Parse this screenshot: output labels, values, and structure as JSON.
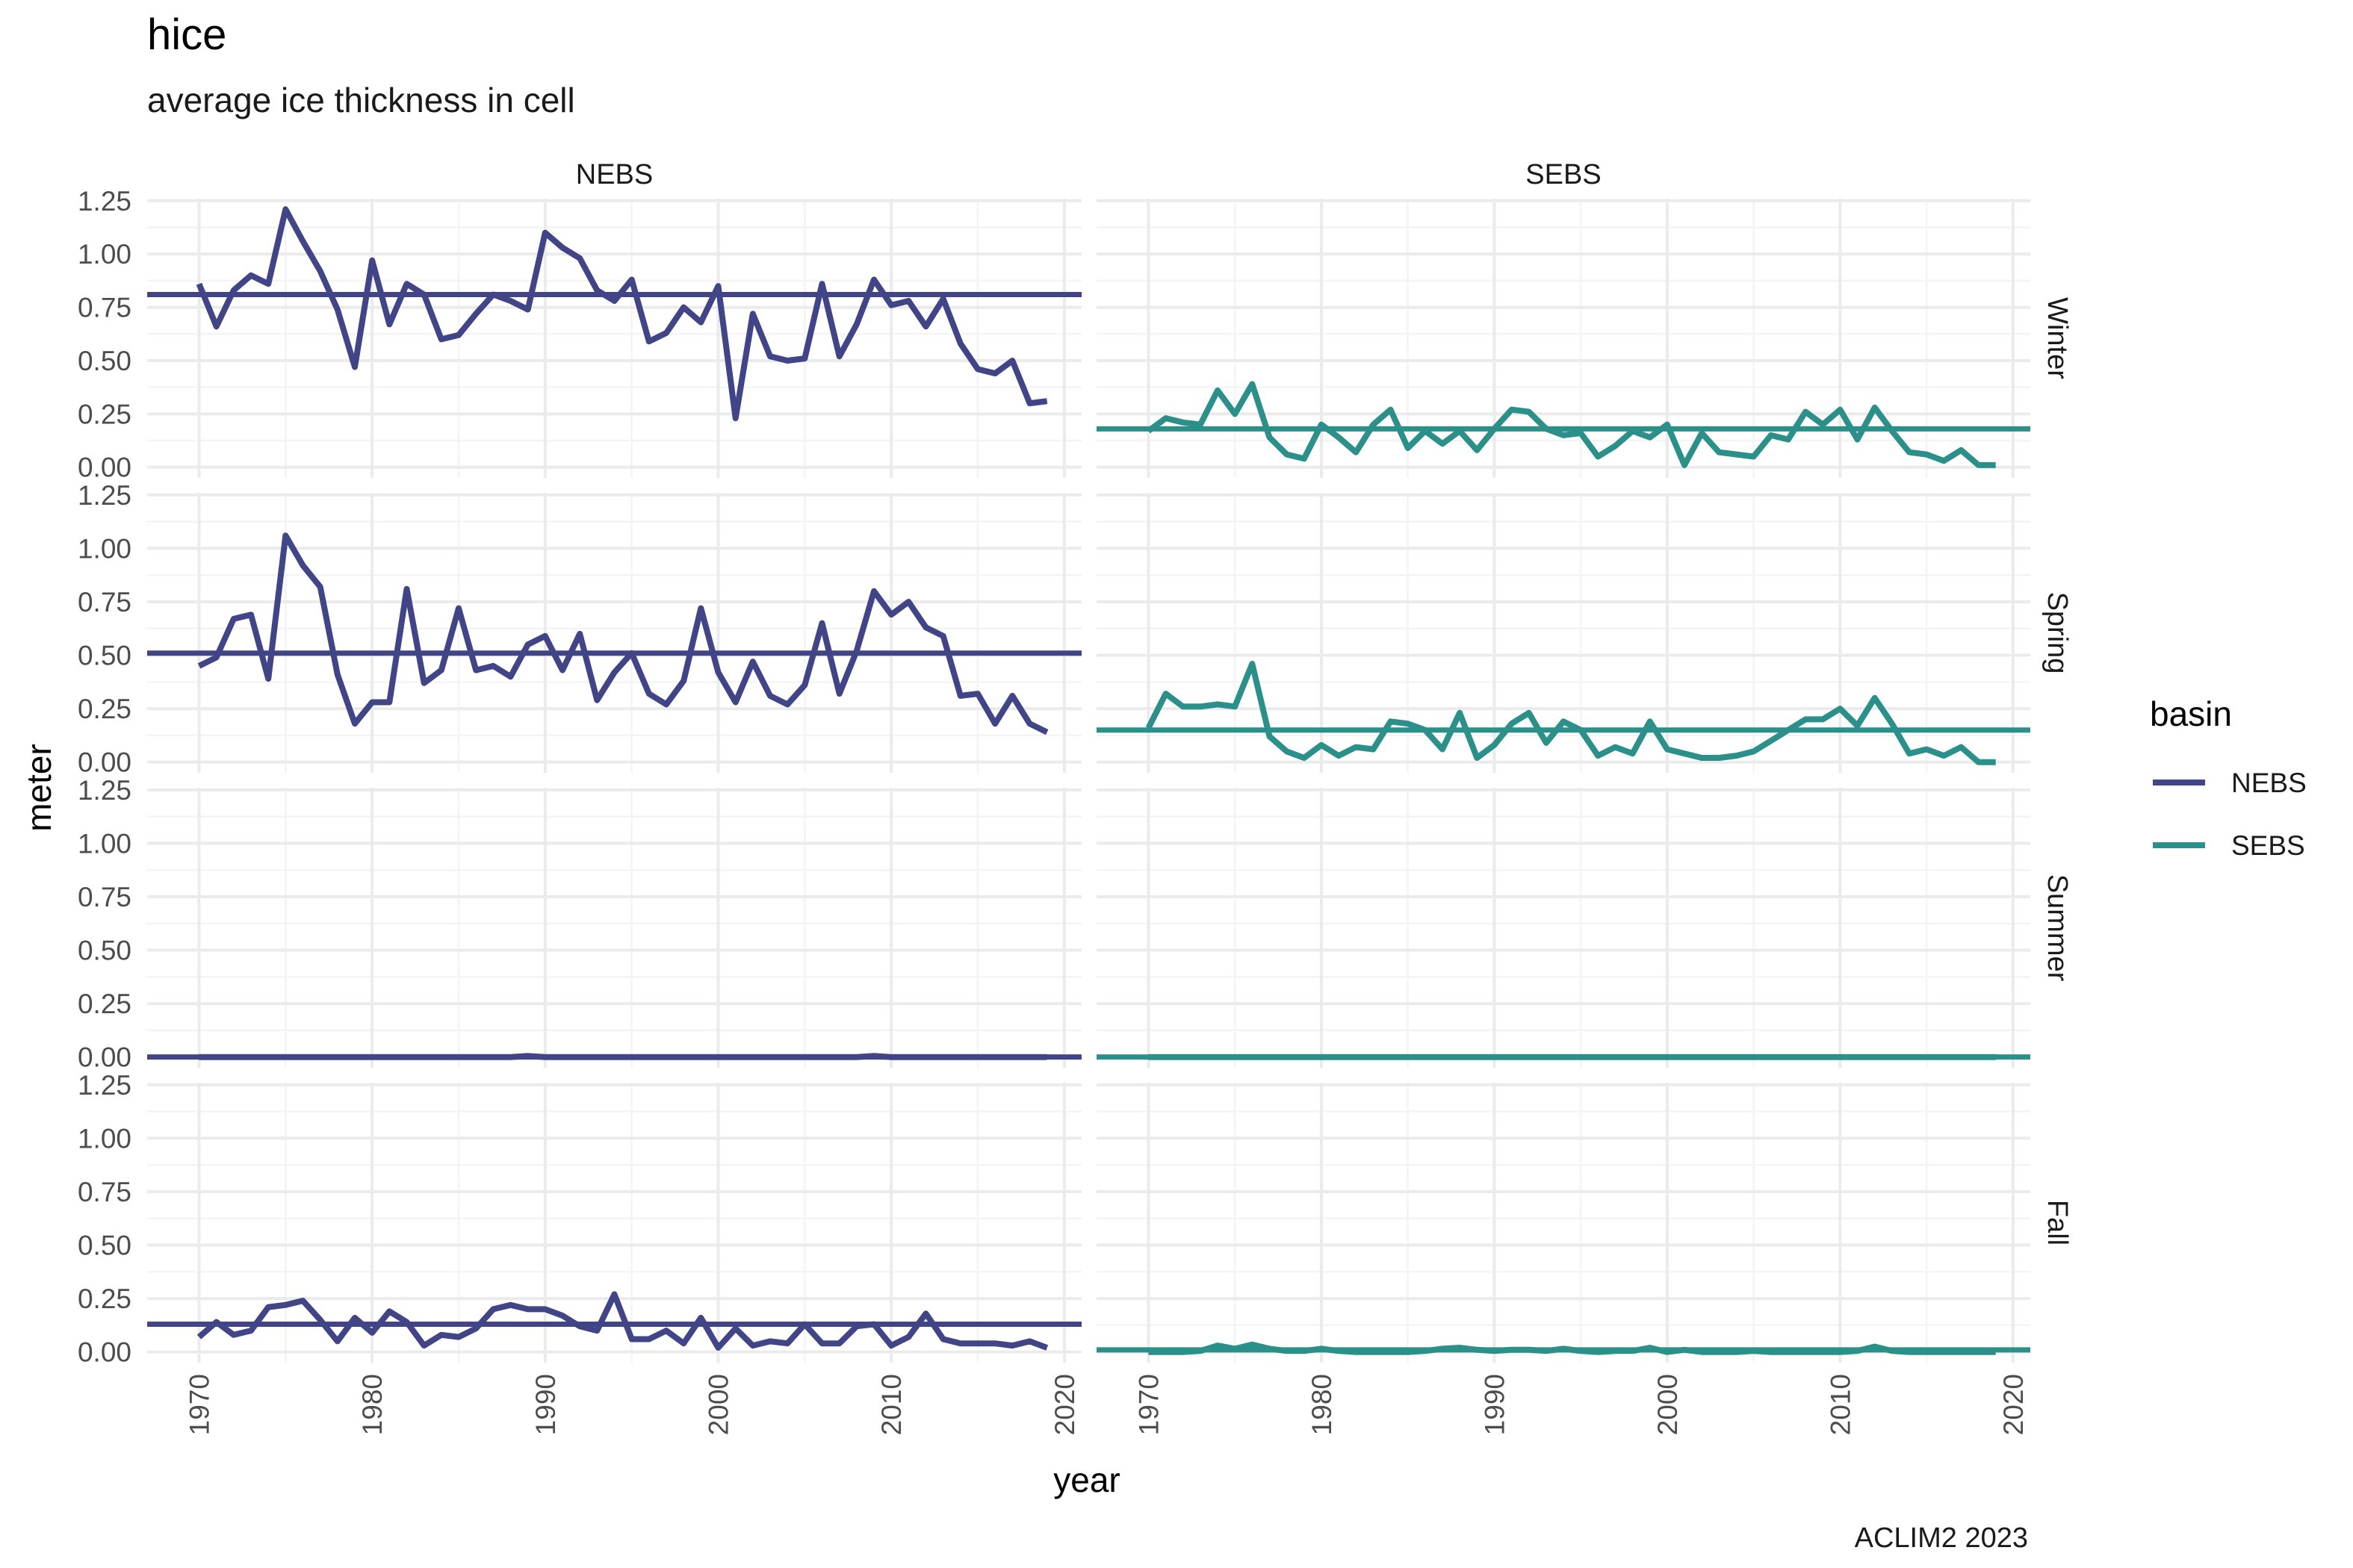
{
  "chart_data": {
    "type": "line",
    "title": "hice",
    "subtitle": "average ice thickness in cell",
    "xlabel": "year",
    "ylabel": "meter",
    "caption": "ACLIM2 2023",
    "legend_title": "basin",
    "legend_position": "right",
    "xlim": [
      1967,
      2021
    ],
    "ylim": [
      -0.05,
      1.26
    ],
    "x_ticks": [
      1970,
      1980,
      1990,
      2000,
      2010,
      2020
    ],
    "y_ticks": [
      0.0,
      0.25,
      0.5,
      0.75,
      1.0,
      1.25
    ],
    "y_tick_labels": [
      "0.00",
      "0.25",
      "0.50",
      "0.75",
      "1.00",
      "1.25"
    ],
    "x_tick_labels": [
      "1970",
      "1980",
      "1990",
      "2000",
      "2010",
      "2020"
    ],
    "columns": [
      "NEBS",
      "SEBS"
    ],
    "rows": [
      "Winter",
      "Spring",
      "Summer",
      "Fall"
    ],
    "colors": {
      "NEBS": "#414487",
      "SEBS": "#2a9089"
    },
    "years": [
      1970,
      1971,
      1972,
      1973,
      1974,
      1975,
      1976,
      1977,
      1978,
      1979,
      1980,
      1981,
      1982,
      1983,
      1984,
      1985,
      1986,
      1987,
      1988,
      1989,
      1990,
      1991,
      1992,
      1993,
      1994,
      1995,
      1996,
      1997,
      1998,
      1999,
      2000,
      2001,
      2002,
      2003,
      2004,
      2005,
      2006,
      2007,
      2008,
      2009,
      2010,
      2011,
      2012,
      2013,
      2014,
      2015,
      2016,
      2017,
      2018,
      2019
    ],
    "series": [
      {
        "basin": "NEBS",
        "season": "Winter",
        "mean": 0.81,
        "values": [
          0.86,
          0.66,
          0.83,
          0.9,
          0.86,
          1.21,
          1.06,
          0.92,
          0.74,
          0.47,
          0.97,
          0.67,
          0.86,
          0.81,
          0.6,
          0.62,
          0.72,
          0.81,
          0.78,
          0.74,
          1.1,
          1.03,
          0.98,
          0.83,
          0.78,
          0.88,
          0.59,
          0.63,
          0.75,
          0.68,
          0.85,
          0.23,
          0.72,
          0.52,
          0.5,
          0.51,
          0.86,
          0.52,
          0.67,
          0.88,
          0.76,
          0.78,
          0.66,
          0.79,
          0.58,
          0.46,
          0.44,
          0.5,
          0.3,
          0.31
        ]
      },
      {
        "basin": "NEBS",
        "season": "Spring",
        "mean": 0.51,
        "values": [
          0.45,
          0.49,
          0.67,
          0.69,
          0.39,
          1.06,
          0.92,
          0.82,
          0.41,
          0.18,
          0.28,
          0.28,
          0.81,
          0.37,
          0.43,
          0.72,
          0.43,
          0.45,
          0.4,
          0.55,
          0.59,
          0.43,
          0.6,
          0.29,
          0.42,
          0.51,
          0.32,
          0.27,
          0.38,
          0.72,
          0.42,
          0.28,
          0.47,
          0.31,
          0.27,
          0.36,
          0.65,
          0.32,
          0.52,
          0.8,
          0.69,
          0.75,
          0.63,
          0.59,
          0.31,
          0.32,
          0.18,
          0.31,
          0.18,
          0.14
        ]
      },
      {
        "basin": "NEBS",
        "season": "Summer",
        "mean": 0.0,
        "values": [
          0,
          0,
          0,
          0,
          0,
          0,
          0,
          0,
          0,
          0,
          0,
          0,
          0,
          0,
          0,
          0,
          0,
          0,
          0,
          0.005,
          0,
          0,
          0,
          0,
          0,
          0,
          0,
          0,
          0,
          0,
          0,
          0,
          0,
          0,
          0,
          0,
          0,
          0,
          0,
          0.005,
          0,
          0,
          0,
          0,
          0,
          0,
          0,
          0,
          0,
          0
        ]
      },
      {
        "basin": "NEBS",
        "season": "Fall",
        "mean": 0.13,
        "values": [
          0.07,
          0.14,
          0.08,
          0.1,
          0.21,
          0.22,
          0.24,
          0.15,
          0.05,
          0.16,
          0.09,
          0.19,
          0.14,
          0.03,
          0.08,
          0.07,
          0.11,
          0.2,
          0.22,
          0.2,
          0.2,
          0.17,
          0.12,
          0.1,
          0.27,
          0.06,
          0.06,
          0.1,
          0.04,
          0.16,
          0.02,
          0.11,
          0.03,
          0.05,
          0.04,
          0.13,
          0.04,
          0.04,
          0.12,
          0.13,
          0.03,
          0.07,
          0.18,
          0.06,
          0.04,
          0.04,
          0.04,
          0.03,
          0.05,
          0.02
        ]
      },
      {
        "basin": "SEBS",
        "season": "Winter",
        "mean": 0.18,
        "values": [
          0.17,
          0.23,
          0.21,
          0.2,
          0.36,
          0.25,
          0.39,
          0.14,
          0.06,
          0.04,
          0.2,
          0.14,
          0.07,
          0.2,
          0.27,
          0.09,
          0.17,
          0.11,
          0.17,
          0.08,
          0.18,
          0.27,
          0.26,
          0.18,
          0.15,
          0.16,
          0.05,
          0.1,
          0.17,
          0.14,
          0.2,
          0.01,
          0.16,
          0.07,
          0.06,
          0.05,
          0.15,
          0.13,
          0.26,
          0.2,
          0.27,
          0.13,
          0.28,
          0.17,
          0.07,
          0.06,
          0.03,
          0.08,
          0.01,
          0.01
        ]
      },
      {
        "basin": "SEBS",
        "season": "Spring",
        "mean": 0.15,
        "values": [
          0.16,
          0.32,
          0.26,
          0.26,
          0.27,
          0.26,
          0.46,
          0.12,
          0.05,
          0.02,
          0.08,
          0.03,
          0.07,
          0.06,
          0.19,
          0.18,
          0.15,
          0.06,
          0.23,
          0.02,
          0.08,
          0.18,
          0.23,
          0.09,
          0.19,
          0.15,
          0.03,
          0.07,
          0.04,
          0.19,
          0.06,
          0.04,
          0.02,
          0.02,
          0.03,
          0.05,
          0.1,
          0.15,
          0.2,
          0.2,
          0.25,
          0.17,
          0.3,
          0.18,
          0.04,
          0.06,
          0.03,
          0.07,
          0.0,
          0.0
        ]
      },
      {
        "basin": "SEBS",
        "season": "Summer",
        "mean": 0.0,
        "values": [
          0,
          0,
          0,
          0,
          0,
          0,
          0,
          0,
          0,
          0,
          0,
          0,
          0,
          0,
          0,
          0,
          0,
          0,
          0,
          0,
          0,
          0,
          0,
          0,
          0,
          0,
          0,
          0,
          0,
          0,
          0,
          0,
          0,
          0,
          0,
          0,
          0,
          0,
          0,
          0,
          0,
          0,
          0,
          0,
          0,
          0,
          0,
          0,
          0,
          0
        ]
      },
      {
        "basin": "SEBS",
        "season": "Fall",
        "mean": 0.01,
        "values": [
          0,
          0,
          0,
          0.005,
          0.03,
          0.015,
          0.035,
          0.015,
          0.005,
          0.005,
          0.015,
          0.005,
          0,
          0,
          0,
          0,
          0.005,
          0.015,
          0.02,
          0.01,
          0.005,
          0.01,
          0.01,
          0.005,
          0.015,
          0.005,
          0,
          0.005,
          0.005,
          0.02,
          0,
          0.01,
          0,
          0,
          0,
          0.005,
          0,
          0,
          0,
          0,
          0,
          0.005,
          0.025,
          0.005,
          0,
          0,
          0,
          0,
          0,
          0
        ]
      }
    ]
  }
}
